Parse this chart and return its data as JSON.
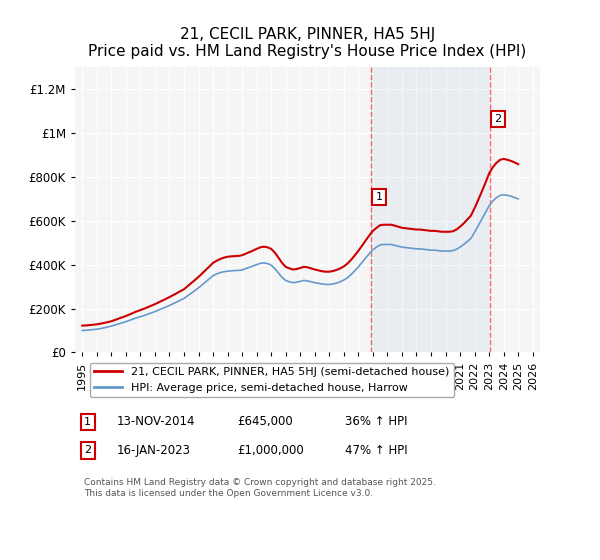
{
  "title": "21, CECIL PARK, PINNER, HA5 5HJ",
  "subtitle": "Price paid vs. HM Land Registry's House Price Index (HPI)",
  "ylabel": "",
  "xlim": [
    1994.5,
    2026.5
  ],
  "ylim": [
    0,
    1300000
  ],
  "yticks": [
    0,
    200000,
    400000,
    600000,
    800000,
    1000000,
    1200000
  ],
  "ytick_labels": [
    "£0",
    "£200K",
    "£400K",
    "£600K",
    "£800K",
    "£1M",
    "£1.2M"
  ],
  "xticks": [
    1995,
    1996,
    1997,
    1998,
    1999,
    2000,
    2001,
    2002,
    2003,
    2004,
    2005,
    2006,
    2007,
    2008,
    2009,
    2010,
    2011,
    2012,
    2013,
    2014,
    2015,
    2016,
    2017,
    2018,
    2019,
    2020,
    2021,
    2022,
    2023,
    2024,
    2025,
    2026
  ],
  "sale1_x": 2014.87,
  "sale1_y": 645000,
  "sale1_label": "1",
  "sale1_date": "13-NOV-2014",
  "sale1_price": "£645,000",
  "sale1_hpi": "36% ↑ HPI",
  "sale2_x": 2023.04,
  "sale2_y": 1000000,
  "sale2_label": "2",
  "sale2_date": "16-JAN-2023",
  "sale2_price": "£1,000,000",
  "sale2_hpi": "47% ↑ HPI",
  "line_color_price": "#cc0000",
  "line_color_hpi": "#6699cc",
  "vline_color": "#ff6666",
  "background_color": "#ffffff",
  "plot_bg_color": "#f5f5f5",
  "legend_label_price": "21, CECIL PARK, PINNER, HA5 5HJ (semi-detached house)",
  "legend_label_hpi": "HPI: Average price, semi-detached house, Harrow",
  "footer": "Contains HM Land Registry data © Crown copyright and database right 2025.\nThis data is licensed under the Open Government Licence v3.0.",
  "title_fontsize": 11,
  "subtitle_fontsize": 10,
  "tick_fontsize": 8.5,
  "hpi_data_x": [
    1995,
    1995.25,
    1995.5,
    1995.75,
    1996,
    1996.25,
    1996.5,
    1996.75,
    1997,
    1997.25,
    1997.5,
    1997.75,
    1998,
    1998.25,
    1998.5,
    1998.75,
    1999,
    1999.25,
    1999.5,
    1999.75,
    2000,
    2000.25,
    2000.5,
    2000.75,
    2001,
    2001.25,
    2001.5,
    2001.75,
    2002,
    2002.25,
    2002.5,
    2002.75,
    2003,
    2003.25,
    2003.5,
    2003.75,
    2004,
    2004.25,
    2004.5,
    2004.75,
    2005,
    2005.25,
    2005.5,
    2005.75,
    2006,
    2006.25,
    2006.5,
    2006.75,
    2007,
    2007.25,
    2007.5,
    2007.75,
    2008,
    2008.25,
    2008.5,
    2008.75,
    2009,
    2009.25,
    2009.5,
    2009.75,
    2010,
    2010.25,
    2010.5,
    2010.75,
    2011,
    2011.25,
    2011.5,
    2011.75,
    2012,
    2012.25,
    2012.5,
    2012.75,
    2013,
    2013.25,
    2013.5,
    2013.75,
    2014,
    2014.25,
    2014.5,
    2014.75,
    2015,
    2015.25,
    2015.5,
    2015.75,
    2016,
    2016.25,
    2016.5,
    2016.75,
    2017,
    2017.25,
    2017.5,
    2017.75,
    2018,
    2018.25,
    2018.5,
    2018.75,
    2019,
    2019.25,
    2019.5,
    2019.75,
    2020,
    2020.25,
    2020.5,
    2020.75,
    2021,
    2021.25,
    2021.5,
    2021.75,
    2022,
    2022.25,
    2022.5,
    2022.75,
    2023,
    2023.25,
    2023.5,
    2023.75,
    2024,
    2024.25,
    2024.5,
    2024.75,
    2025
  ],
  "hpi_data_y": [
    100000,
    101000,
    102500,
    104000,
    106000,
    109000,
    112000,
    116000,
    120000,
    125000,
    130000,
    135000,
    140000,
    146000,
    152000,
    158000,
    163000,
    168000,
    174000,
    180000,
    186000,
    193000,
    200000,
    207000,
    214000,
    222000,
    230000,
    238000,
    246000,
    258000,
    270000,
    282000,
    294000,
    308000,
    322000,
    336000,
    350000,
    358000,
    364000,
    368000,
    370000,
    372000,
    373000,
    374000,
    376000,
    382000,
    388000,
    394000,
    400000,
    406000,
    408000,
    405000,
    398000,
    382000,
    362000,
    342000,
    328000,
    322000,
    318000,
    320000,
    324000,
    328000,
    326000,
    322000,
    318000,
    315000,
    312000,
    310000,
    310000,
    312000,
    316000,
    322000,
    330000,
    340000,
    355000,
    372000,
    390000,
    410000,
    430000,
    450000,
    468000,
    480000,
    490000,
    492000,
    492000,
    492000,
    488000,
    484000,
    480000,
    478000,
    476000,
    474000,
    472000,
    472000,
    470000,
    468000,
    466000,
    466000,
    464000,
    462000,
    462000,
    462000,
    464000,
    470000,
    480000,
    492000,
    506000,
    520000,
    548000,
    578000,
    608000,
    638000,
    668000,
    690000,
    705000,
    716000,
    718000,
    716000,
    712000,
    706000,
    700000
  ],
  "price_data_x": [
    1995,
    1995.25,
    1995.5,
    1995.75,
    1996,
    1996.25,
    1996.5,
    1996.75,
    1997,
    1997.25,
    1997.5,
    1997.75,
    1998,
    1998.25,
    1998.5,
    1998.75,
    1999,
    1999.25,
    1999.5,
    1999.75,
    2000,
    2000.25,
    2000.5,
    2000.75,
    2001,
    2001.25,
    2001.5,
    2001.75,
    2002,
    2002.25,
    2002.5,
    2002.75,
    2003,
    2003.25,
    2003.5,
    2003.75,
    2004,
    2004.25,
    2004.5,
    2004.75,
    2005,
    2005.25,
    2005.5,
    2005.75,
    2006,
    2006.25,
    2006.5,
    2006.75,
    2007,
    2007.25,
    2007.5,
    2007.75,
    2008,
    2008.25,
    2008.5,
    2008.75,
    2009,
    2009.25,
    2009.5,
    2009.75,
    2010,
    2010.25,
    2010.5,
    2010.75,
    2011,
    2011.25,
    2011.5,
    2011.75,
    2012,
    2012.25,
    2012.5,
    2012.75,
    2013,
    2013.25,
    2013.5,
    2013.75,
    2014,
    2014.25,
    2014.5,
    2014.75,
    2015,
    2015.25,
    2015.5,
    2015.75,
    2016,
    2016.25,
    2016.5,
    2016.75,
    2017,
    2017.25,
    2017.5,
    2017.75,
    2018,
    2018.25,
    2018.5,
    2018.75,
    2019,
    2019.25,
    2019.5,
    2019.75,
    2020,
    2020.25,
    2020.5,
    2020.75,
    2021,
    2021.25,
    2021.5,
    2021.75,
    2022,
    2022.25,
    2022.5,
    2022.75,
    2023,
    2023.25,
    2023.5,
    2023.75,
    2024,
    2024.25,
    2024.5,
    2024.75,
    2025
  ],
  "price_data_y": [
    122000,
    123000,
    124500,
    126000,
    128000,
    131000,
    134500,
    138000,
    142000,
    148000,
    154000,
    160000,
    166000,
    173000,
    180000,
    187000,
    193000,
    199000,
    206000,
    213000,
    220000,
    228000,
    236000,
    244000,
    252000,
    261000,
    270000,
    279000,
    288000,
    302000,
    316000,
    330000,
    344000,
    360000,
    376000,
    392000,
    408000,
    418000,
    426000,
    432000,
    436000,
    438000,
    439000,
    440000,
    443000,
    450000,
    457000,
    464000,
    472000,
    479000,
    482000,
    479000,
    472000,
    455000,
    432000,
    408000,
    390000,
    383000,
    378000,
    380000,
    385000,
    390000,
    388000,
    383000,
    378000,
    374000,
    370000,
    368000,
    368000,
    371000,
    376000,
    383000,
    392000,
    405000,
    422000,
    442000,
    463000,
    486000,
    510000,
    533000,
    554000,
    568000,
    580000,
    582000,
    582000,
    582000,
    578000,
    573000,
    568000,
    566000,
    564000,
    562000,
    560000,
    560000,
    558000,
    556000,
    554000,
    554000,
    552000,
    550000,
    550000,
    550000,
    552000,
    560000,
    573000,
    588000,
    606000,
    624000,
    658000,
    695000,
    734000,
    774000,
    816000,
    844000,
    864000,
    878000,
    882000,
    878000,
    873000,
    866000,
    858000
  ]
}
